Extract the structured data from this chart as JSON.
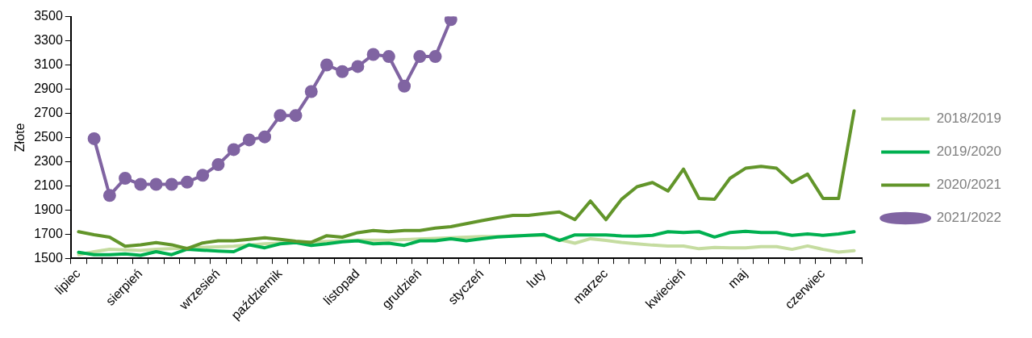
{
  "chart_data": {
    "type": "line",
    "ylabel": "Złote",
    "categories": [
      "lipiec",
      null,
      null,
      null,
      "sierpień",
      null,
      null,
      null,
      null,
      "wrzesień",
      null,
      null,
      null,
      "październik",
      null,
      null,
      null,
      null,
      "listopad",
      null,
      null,
      null,
      "grudzień",
      null,
      null,
      null,
      "styczeń",
      null,
      null,
      null,
      "luty",
      null,
      null,
      null,
      "marzec",
      null,
      null,
      null,
      null,
      "kwiecień",
      null,
      null,
      null,
      "maj",
      null,
      null,
      null,
      null,
      "czerwiec",
      null,
      null
    ],
    "ylim": [
      1500,
      3500
    ],
    "yticks": [
      1500,
      1700,
      1900,
      2100,
      2300,
      2500,
      2700,
      2900,
      3100,
      3300,
      3500
    ],
    "grid": false,
    "legend": "right",
    "line_style": "solid",
    "series": [
      {
        "name": "2018/2019",
        "color": "#c5dca0",
        "marker": "none",
        "values": [
          1530,
          1555,
          1575,
          1570,
          1565,
          1575,
          1580,
          1585,
          1590,
          1595,
          1600,
          1610,
          1620,
          1625,
          1630,
          1635,
          1640,
          1645,
          1650,
          1650,
          1650,
          1655,
          1660,
          1665,
          1670,
          1675,
          1680,
          1680,
          1685,
          1690,
          1690,
          1655,
          1625,
          1662,
          1648,
          1632,
          1620,
          1609,
          1602,
          1602,
          1579,
          1590,
          1586,
          1586,
          1597,
          1597,
          1574,
          1602,
          1574,
          1551,
          1563
        ]
      },
      {
        "name": "2019/2020",
        "color": "#00b050",
        "marker": "none",
        "values": [
          1550,
          1530,
          1530,
          1537,
          1525,
          1555,
          1530,
          1575,
          1567,
          1560,
          1555,
          1612,
          1587,
          1620,
          1630,
          1607,
          1620,
          1637,
          1645,
          1620,
          1625,
          1607,
          1645,
          1645,
          1662,
          1645,
          1662,
          1676,
          1683,
          1690,
          1697,
          1648,
          1694,
          1694,
          1694,
          1685,
          1683,
          1690,
          1720,
          1713,
          1720,
          1676,
          1713,
          1724,
          1713,
          1713,
          1690,
          1701,
          1690,
          1701,
          1720
        ]
      },
      {
        "name": "2020/2021",
        "color": "#62952a",
        "marker": "none",
        "values": [
          1720,
          1695,
          1675,
          1600,
          1612,
          1630,
          1612,
          1580,
          1627,
          1645,
          1645,
          1657,
          1670,
          1657,
          1642,
          1632,
          1687,
          1675,
          1712,
          1730,
          1720,
          1730,
          1730,
          1750,
          1762,
          1787,
          1812,
          1835,
          1855,
          1855,
          1870,
          1883,
          1820,
          1974,
          1820,
          1988,
          2092,
          2127,
          2057,
          2238,
          1995,
          1988,
          2162,
          2245,
          2260,
          2245,
          2127,
          2197,
          1995,
          1995,
          2720
        ]
      },
      {
        "name": "2021/2022",
        "color": "#8064a2",
        "marker": "circle",
        "values": [
          null,
          2490,
          2020,
          2162,
          2112,
          2112,
          2112,
          2130,
          2187,
          2275,
          2400,
          2480,
          2505,
          2682,
          2682,
          2880,
          3100,
          3045,
          3087,
          3187,
          3170,
          2925,
          3170,
          3170,
          3475,
          null,
          null,
          null,
          null,
          null,
          null,
          null,
          null,
          null,
          null,
          null,
          null,
          null,
          null,
          null,
          null,
          null,
          null,
          null,
          null,
          null,
          null,
          null,
          null,
          null,
          null
        ]
      }
    ]
  }
}
